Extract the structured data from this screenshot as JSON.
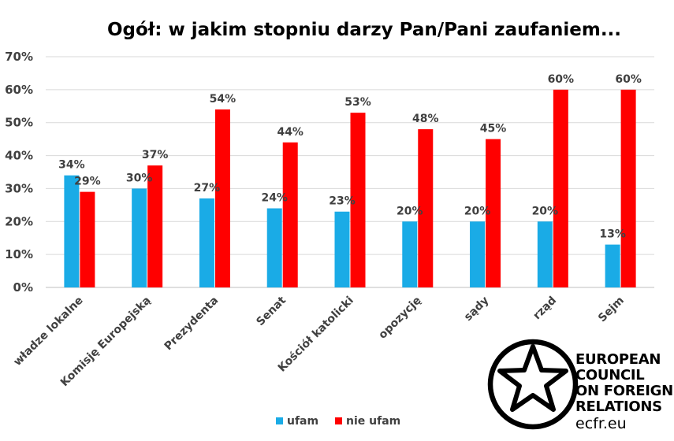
{
  "chart_data": {
    "type": "bar",
    "title": "Ogół: w jakim stopniu darzy Pan/Pani zaufaniem...",
    "categories": [
      "władze lokalne",
      "Komisję Europejską",
      "Prezydenta",
      "Senat",
      "Kościół katolicki",
      "opozycję",
      "sądy",
      "rząd",
      "Sejm"
    ],
    "series": [
      {
        "name": "ufam",
        "color": "#1aabe6",
        "values": [
          34,
          30,
          27,
          24,
          23,
          20,
          20,
          20,
          13
        ]
      },
      {
        "name": "nie ufam",
        "color": "#ff0000",
        "values": [
          29,
          37,
          54,
          44,
          53,
          48,
          45,
          60,
          60
        ]
      }
    ],
    "ylim": [
      0,
      70
    ],
    "yticks": [
      0,
      10,
      20,
      30,
      40,
      50,
      60,
      70
    ],
    "tick_suffix": "%",
    "grid": true,
    "legend_position": "bottom-center"
  },
  "logo": {
    "lines": [
      "EUROPEAN",
      "COUNCIL",
      "ON FOREIGN",
      "RELATIONS"
    ],
    "url": "ecfr.eu",
    "icon": "star-circle-icon"
  }
}
